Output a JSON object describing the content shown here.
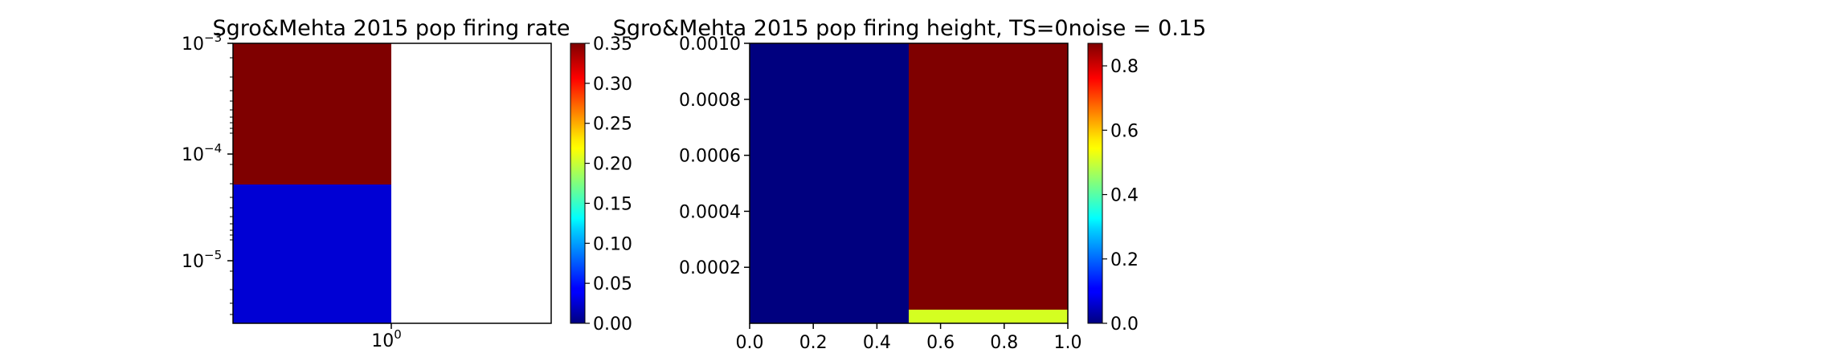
{
  "chart_data": [
    {
      "type": "heatmap",
      "title": "Sgro&Mehta 2015 pop firing rate",
      "x_scale": "log",
      "y_scale": "log",
      "x_tick_labels": [
        "10^0"
      ],
      "y_tick_labels": [
        "10^-3",
        "10^-4",
        "10^-5"
      ],
      "cells": [
        {
          "x": "low",
          "y": "upper",
          "value": 0.35
        },
        {
          "x": "low",
          "y": "lower",
          "value": 0.045
        },
        {
          "x": "high",
          "y": "upper",
          "value": null
        },
        {
          "x": "high",
          "y": "lower",
          "value": null
        }
      ],
      "colormap": "jet",
      "colorbar": {
        "min": 0.0,
        "max": 0.35,
        "ticks": [
          "0.00",
          "0.05",
          "0.10",
          "0.15",
          "0.20",
          "0.25",
          "0.30",
          "0.35"
        ]
      }
    },
    {
      "type": "heatmap",
      "title": "Sgro&Mehta 2015 pop firing height, TS=0noise = 0.15",
      "x_scale": "linear",
      "y_scale": "linear",
      "xlim": [
        0.0,
        1.0
      ],
      "ylim": [
        0.0,
        0.001
      ],
      "x_tick_labels": [
        "0.0",
        "0.2",
        "0.4",
        "0.6",
        "0.8",
        "1.0"
      ],
      "y_tick_labels": [
        "0.0002",
        "0.0004",
        "0.0006",
        "0.0008",
        "0.0010"
      ],
      "cells": [
        {
          "x0": 0.0,
          "x1": 0.5,
          "y0": 0.0,
          "y1": 0.001,
          "value": 0.0
        },
        {
          "x0": 0.5,
          "x1": 1.0,
          "y0": 5e-05,
          "y1": 0.001,
          "value": 0.87
        },
        {
          "x0": 0.5,
          "x1": 1.0,
          "y0": 0.0,
          "y1": 5e-05,
          "value": 0.55
        }
      ],
      "colormap": "jet",
      "colorbar": {
        "min": 0.0,
        "max": 0.87,
        "ticks": [
          "0.0",
          "0.2",
          "0.4",
          "0.6",
          "0.8"
        ]
      }
    }
  ]
}
